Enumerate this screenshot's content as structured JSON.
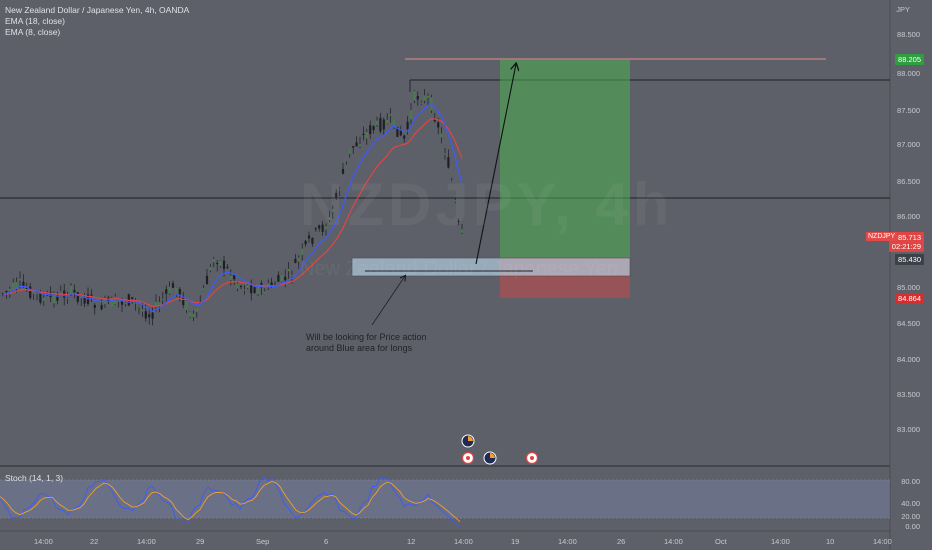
{
  "header": {
    "title": "New Zealand Dollar / Japanese Yen, 4h, OANDA",
    "ema1": "EMA (18, close)",
    "ema2": "EMA (8, close)"
  },
  "watermark": {
    "main": "NZDJPY, 4h",
    "sub": "New Zealand Dollar / Japanese Yen"
  },
  "price_axis": {
    "currency": "JPY",
    "ticks": [
      "88.500",
      "88.000",
      "87.500",
      "87.000",
      "86.500",
      "86.000",
      "85.000",
      "84.500",
      "84.000",
      "83.500",
      "83.000"
    ]
  },
  "tags": {
    "target": "88.205",
    "current": "85.713",
    "countdown": "02:21:29",
    "entry": "85.430",
    "stop": "84.864",
    "symbol": "NZDJPY"
  },
  "stoch": {
    "label": "Stoch (14, 1, 3)",
    "ticks": [
      "80.00",
      "40.00",
      "20.00",
      "0.00"
    ]
  },
  "time_axis": [
    "14:00",
    "22",
    "14:00",
    "29",
    "Sep",
    "6",
    "12",
    "14:00",
    "19",
    "14:00",
    "26",
    "14:00",
    "Oct",
    "14:00",
    "10",
    "14:00"
  ],
  "annotation": {
    "line1": "Will be looking for Price action",
    "line2": "around Blue area for longs"
  },
  "colors": {
    "background": "#5d6068",
    "ema_fast": "#3d5afe",
    "ema_slow": "#e04545",
    "profit": "#4caf50",
    "loss": "#e04545",
    "zone": "#a8c8e0"
  }
}
